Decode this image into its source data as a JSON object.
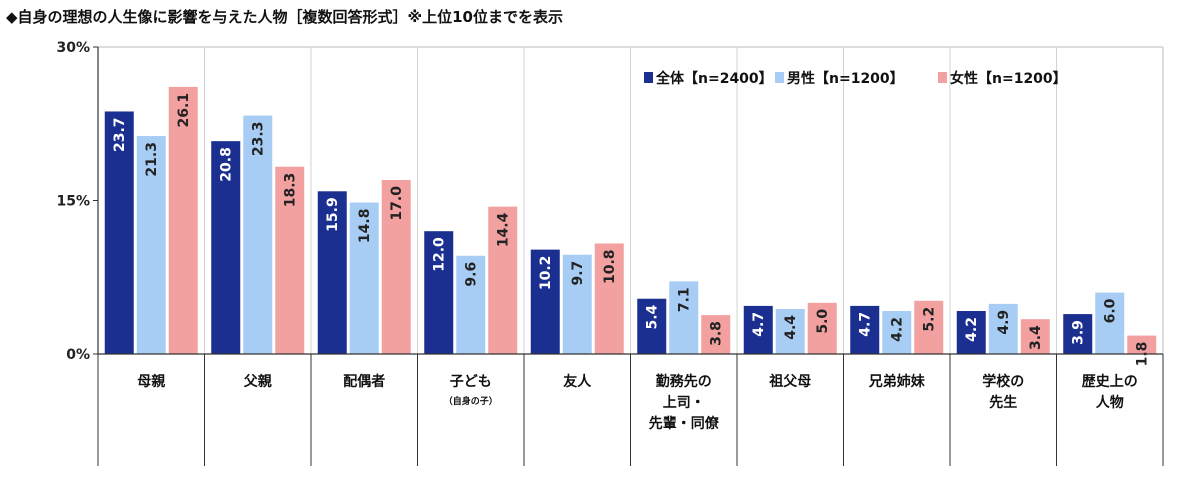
{
  "title": "◆自身の理想の人生像に影響を与えた人物［複数回答形式］※上位10位までを表示",
  "chart_data": {
    "type": "bar",
    "ylim": [
      0,
      30
    ],
    "yticks": [
      "0%",
      "15%",
      "30%"
    ],
    "ytick_values": [
      0,
      15,
      30
    ],
    "grid": false,
    "legend_position": "top-right",
    "categories": [
      {
        "lines": [
          "母親"
        ]
      },
      {
        "lines": [
          "父親"
        ]
      },
      {
        "lines": [
          "配偶者"
        ]
      },
      {
        "lines": [
          "子ども"
        ],
        "sub": "（自身の子）"
      },
      {
        "lines": [
          "友人"
        ]
      },
      {
        "lines": [
          "勤務先の",
          "上司・",
          "先輩・同僚"
        ]
      },
      {
        "lines": [
          "祖父母"
        ]
      },
      {
        "lines": [
          "兄弟姉妹"
        ]
      },
      {
        "lines": [
          "学校の",
          "先生"
        ]
      },
      {
        "lines": [
          "歴史上の",
          "人物"
        ]
      }
    ],
    "series": [
      {
        "name": "全体【n=2400】",
        "color": "#1a2f8f",
        "label_color": "#ffffff",
        "values": [
          23.7,
          20.8,
          15.9,
          12.0,
          10.2,
          5.4,
          4.7,
          4.7,
          4.2,
          3.9
        ],
        "labels": [
          "23.7",
          "20.8",
          "15.9",
          "12.0",
          "10.2",
          "5.4",
          "4.7",
          "4.7",
          "4.2",
          "3.9"
        ]
      },
      {
        "name": "男性【n=1200】",
        "color": "#a8cdf5",
        "label_color": "#222222",
        "values": [
          21.3,
          23.3,
          14.8,
          9.6,
          9.7,
          7.1,
          4.4,
          4.2,
          4.9,
          6.0
        ],
        "labels": [
          "21.3",
          "23.3",
          "14.8",
          "9.6",
          "9.7",
          "7.1",
          "4.4",
          "4.2",
          "4.9",
          "6.0"
        ]
      },
      {
        "name": "女性【n=1200】",
        "color": "#f2a0a0",
        "label_color": "#222222",
        "values": [
          26.1,
          18.3,
          17.0,
          14.4,
          10.8,
          3.8,
          5.0,
          5.2,
          3.4,
          1.8
        ],
        "labels": [
          "26.1",
          "18.3",
          "17.0",
          "14.4",
          "10.8",
          "3.8",
          "5.0",
          "5.2",
          "3.4",
          "1.8"
        ]
      }
    ]
  }
}
